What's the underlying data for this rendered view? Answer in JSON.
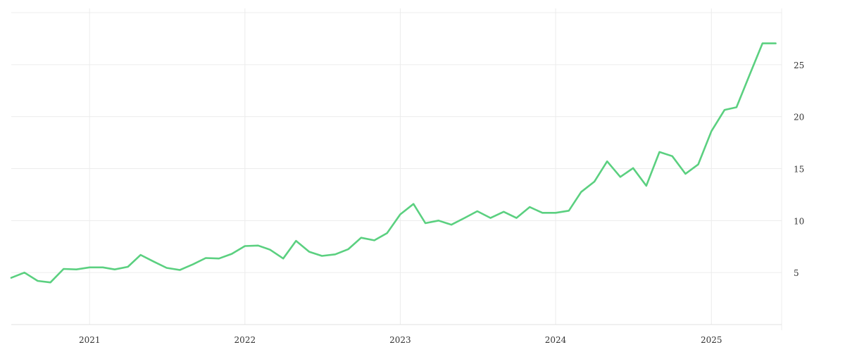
{
  "chart_data": {
    "type": "line",
    "title": "",
    "xlabel": "",
    "ylabel": "",
    "x_axis": {
      "type": "date",
      "range": [
        "2020-07-01",
        "2025-06-15"
      ],
      "ticks": [
        "2021-01-01",
        "2022-01-01",
        "2023-01-01",
        "2024-01-01",
        "2025-01-01"
      ],
      "tick_labels": [
        "2021",
        "2022",
        "2023",
        "2024",
        "2025"
      ]
    },
    "y_axis": {
      "position": "right",
      "range": [
        0,
        30
      ],
      "ticks": [
        5,
        10,
        15,
        20,
        25
      ],
      "tick_labels": [
        "5",
        "10",
        "15",
        "20",
        "25"
      ]
    },
    "grid": true,
    "colors": {
      "line": "#5bd080",
      "grid": "#ececec",
      "text": "#333333"
    },
    "series": [
      {
        "points": [
          [
            "2020-07-01",
            4.5
          ],
          [
            "2020-08-01",
            5.0
          ],
          [
            "2020-09-01",
            4.2
          ],
          [
            "2020-10-01",
            4.05
          ],
          [
            "2020-11-01",
            5.35
          ],
          [
            "2020-12-01",
            5.3
          ],
          [
            "2021-01-01",
            5.5
          ],
          [
            "2021-02-01",
            5.5
          ],
          [
            "2021-03-01",
            5.3
          ],
          [
            "2021-04-01",
            5.55
          ],
          [
            "2021-05-01",
            6.7
          ],
          [
            "2021-06-01",
            6.05
          ],
          [
            "2021-07-01",
            5.45
          ],
          [
            "2021-08-01",
            5.25
          ],
          [
            "2021-09-01",
            5.8
          ],
          [
            "2021-10-01",
            6.4
          ],
          [
            "2021-11-01",
            6.35
          ],
          [
            "2021-12-01",
            6.8
          ],
          [
            "2022-01-01",
            7.55
          ],
          [
            "2022-02-01",
            7.6
          ],
          [
            "2022-03-01",
            7.2
          ],
          [
            "2022-04-01",
            6.35
          ],
          [
            "2022-05-01",
            8.05
          ],
          [
            "2022-06-01",
            7.0
          ],
          [
            "2022-07-01",
            6.6
          ],
          [
            "2022-08-01",
            6.75
          ],
          [
            "2022-09-01",
            7.25
          ],
          [
            "2022-10-01",
            8.35
          ],
          [
            "2022-11-01",
            8.1
          ],
          [
            "2022-12-01",
            8.8
          ],
          [
            "2023-01-01",
            10.6
          ],
          [
            "2023-02-01",
            11.6
          ],
          [
            "2023-03-01",
            9.75
          ],
          [
            "2023-04-01",
            10.0
          ],
          [
            "2023-05-01",
            9.6
          ],
          [
            "2023-06-01",
            10.25
          ],
          [
            "2023-07-01",
            10.9
          ],
          [
            "2023-08-01",
            10.25
          ],
          [
            "2023-09-01",
            10.85
          ],
          [
            "2023-10-01",
            10.25
          ],
          [
            "2023-11-01",
            11.3
          ],
          [
            "2023-12-01",
            10.75
          ],
          [
            "2024-01-01",
            10.75
          ],
          [
            "2024-02-01",
            10.95
          ],
          [
            "2024-03-01",
            12.75
          ],
          [
            "2024-04-01",
            13.75
          ],
          [
            "2024-05-01",
            15.7
          ],
          [
            "2024-06-01",
            14.2
          ],
          [
            "2024-07-01",
            15.05
          ],
          [
            "2024-08-01",
            13.35
          ],
          [
            "2024-09-01",
            16.6
          ],
          [
            "2024-10-01",
            16.2
          ],
          [
            "2024-11-01",
            14.5
          ],
          [
            "2024-12-01",
            15.4
          ],
          [
            "2025-01-01",
            18.6
          ],
          [
            "2025-02-01",
            20.65
          ],
          [
            "2025-03-01",
            20.9
          ],
          [
            "2025-04-01",
            24.05
          ],
          [
            "2025-05-01",
            27.05
          ],
          [
            "2025-06-01",
            27.05
          ]
        ]
      }
    ]
  }
}
